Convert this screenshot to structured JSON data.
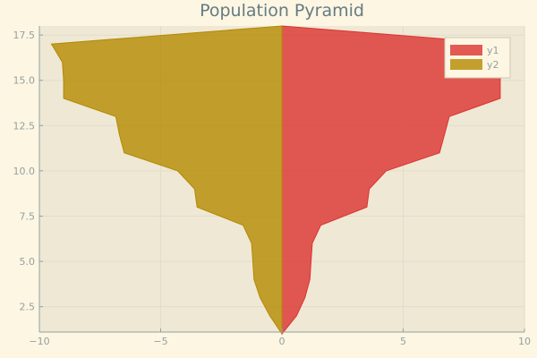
{
  "chart_data": {
    "type": "area",
    "title": "Population Pyramid",
    "xlabel": "",
    "ylabel": "",
    "xlim": [
      -10,
      10
    ],
    "ylim": [
      1.1,
      18.0
    ],
    "xticks": [
      {
        "value": -10,
        "label": "−10"
      },
      {
        "value": -5,
        "label": "−5"
      },
      {
        "value": 0,
        "label": "0"
      },
      {
        "value": 5,
        "label": "5"
      },
      {
        "value": 10,
        "label": "10"
      }
    ],
    "yticks": [
      {
        "value": 2.5,
        "label": "2.5"
      },
      {
        "value": 5.0,
        "label": "5.0"
      },
      {
        "value": 7.5,
        "label": "7.5"
      },
      {
        "value": 10.0,
        "label": "10.0"
      },
      {
        "value": 12.5,
        "label": "12.5"
      },
      {
        "value": 15.0,
        "label": "15.0"
      },
      {
        "value": 17.5,
        "label": "17.5"
      }
    ],
    "grid": true,
    "legend_position": "top-right",
    "y": [
      1,
      2,
      3,
      4,
      5,
      6,
      7,
      8,
      9,
      10,
      11,
      12,
      13,
      14,
      15,
      16,
      17
    ],
    "series": [
      {
        "name": "y1",
        "color": "#dc322f",
        "values": [
          0.0,
          0.6,
          0.95,
          1.15,
          1.2,
          1.25,
          1.6,
          3.5,
          3.6,
          4.3,
          6.5,
          6.7,
          6.9,
          9.0,
          9.0,
          9.05,
          9.3
        ]
      },
      {
        "name": "y2",
        "color": "#b58900",
        "values": [
          0.0,
          -0.5,
          -0.9,
          -1.15,
          -1.2,
          -1.25,
          -1.6,
          -3.5,
          -3.6,
          -4.3,
          -6.5,
          -6.7,
          -6.85,
          -9.0,
          -9.0,
          -9.05,
          -9.5
        ]
      }
    ],
    "apex_y": 18.0
  }
}
